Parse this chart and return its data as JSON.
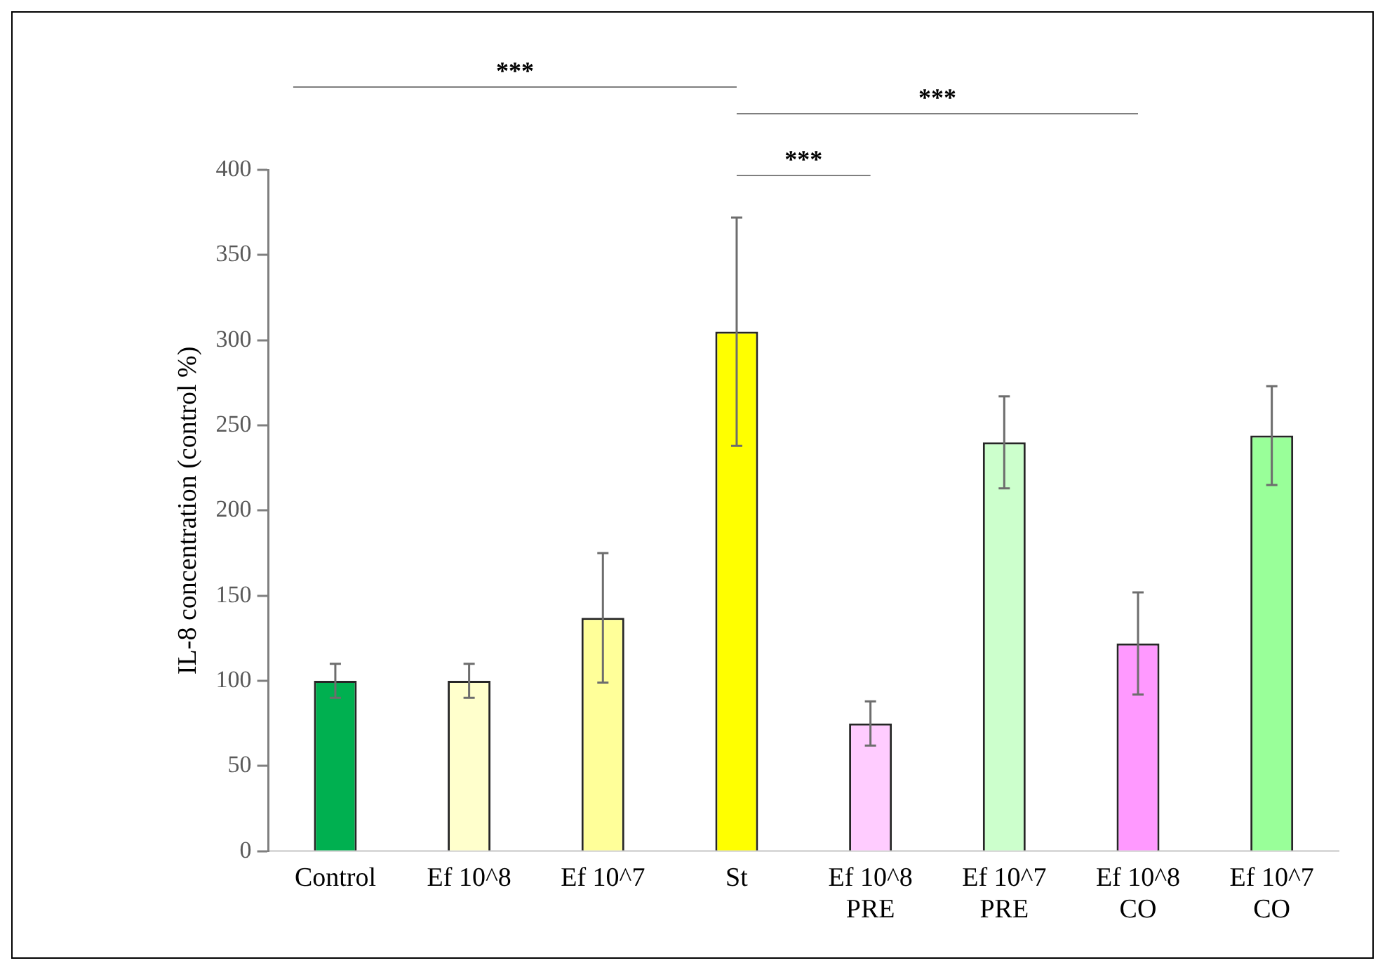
{
  "chart_data": {
    "type": "bar",
    "ylabel": "IL-8 concentration (control %)",
    "categories": [
      "Control",
      "Ef 10^8",
      "Ef 10^7",
      "St",
      "Ef 10^8\nPRE",
      "Ef 10^7\nPRE",
      "Ef 10^8\nCO",
      "Ef 10^7\nCO"
    ],
    "values": [
      100,
      100,
      137,
      305,
      75,
      240,
      122,
      244
    ],
    "errors": [
      10,
      10,
      38,
      67,
      13,
      27,
      30,
      29
    ],
    "colors": [
      "#00b050",
      "#ffffcc",
      "#ffff99",
      "#ffff00",
      "#ffccff",
      "#ccffcc",
      "#ff99ff",
      "#99ff99"
    ],
    "ylim": [
      0,
      400
    ],
    "yticks": [
      0,
      50,
      100,
      150,
      200,
      250,
      300,
      350,
      400
    ],
    "grid": false,
    "legend": false,
    "annotations": [
      "***",
      "***",
      "***"
    ]
  }
}
